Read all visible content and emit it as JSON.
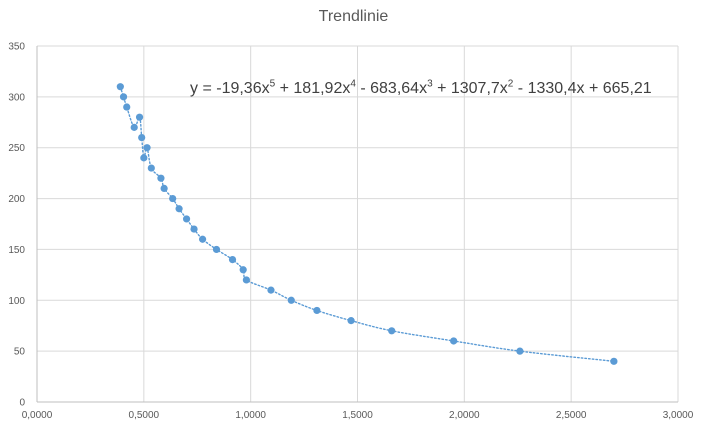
{
  "chart_data": {
    "type": "scatter",
    "title": "Trendlinie",
    "xlabel": "",
    "ylabel": "",
    "xlim": [
      0,
      3
    ],
    "ylim": [
      0,
      350
    ],
    "x_ticks": [
      "0,0000",
      "0,5000",
      "1,0000",
      "1,5000",
      "2,0000",
      "2,5000",
      "3,0000"
    ],
    "x_tick_values": [
      0,
      0.5,
      1.0,
      1.5,
      2.0,
      2.5,
      3.0
    ],
    "y_ticks": [
      "0",
      "50",
      "100",
      "150",
      "200",
      "250",
      "300",
      "350"
    ],
    "y_tick_values": [
      0,
      50,
      100,
      150,
      200,
      250,
      300,
      350
    ],
    "grid": true,
    "legend": "none",
    "marker_color": "#5B9BD5",
    "trendline": {
      "type": "polynomial",
      "order": 5,
      "style": "dotted",
      "color": "#5B9BD5",
      "equation_parts": {
        "p1": "y = -19,36x",
        "e1": "5",
        "p2": " + 181,92x",
        "e2": "4",
        "p3": " - 683,64x",
        "e3": "3",
        "p4": " + 1307,7x",
        "e4": "2",
        "p5": " - 1330,4x + 665,21"
      }
    },
    "points": [
      {
        "x": 0.39,
        "y": 310
      },
      {
        "x": 0.405,
        "y": 300
      },
      {
        "x": 0.42,
        "y": 290
      },
      {
        "x": 0.455,
        "y": 270
      },
      {
        "x": 0.48,
        "y": 280
      },
      {
        "x": 0.49,
        "y": 260
      },
      {
        "x": 0.5,
        "y": 240
      },
      {
        "x": 0.515,
        "y": 250
      },
      {
        "x": 0.535,
        "y": 230
      },
      {
        "x": 0.58,
        "y": 220
      },
      {
        "x": 0.595,
        "y": 210
      },
      {
        "x": 0.635,
        "y": 200
      },
      {
        "x": 0.665,
        "y": 190
      },
      {
        "x": 0.7,
        "y": 180
      },
      {
        "x": 0.735,
        "y": 170
      },
      {
        "x": 0.775,
        "y": 160
      },
      {
        "x": 0.84,
        "y": 150
      },
      {
        "x": 0.915,
        "y": 140
      },
      {
        "x": 0.965,
        "y": 130
      },
      {
        "x": 0.98,
        "y": 120
      },
      {
        "x": 1.095,
        "y": 110
      },
      {
        "x": 1.19,
        "y": 100
      },
      {
        "x": 1.31,
        "y": 90
      },
      {
        "x": 1.47,
        "y": 80
      },
      {
        "x": 1.66,
        "y": 70
      },
      {
        "x": 1.95,
        "y": 60
      },
      {
        "x": 2.26,
        "y": 50
      },
      {
        "x": 2.7,
        "y": 40
      }
    ]
  }
}
